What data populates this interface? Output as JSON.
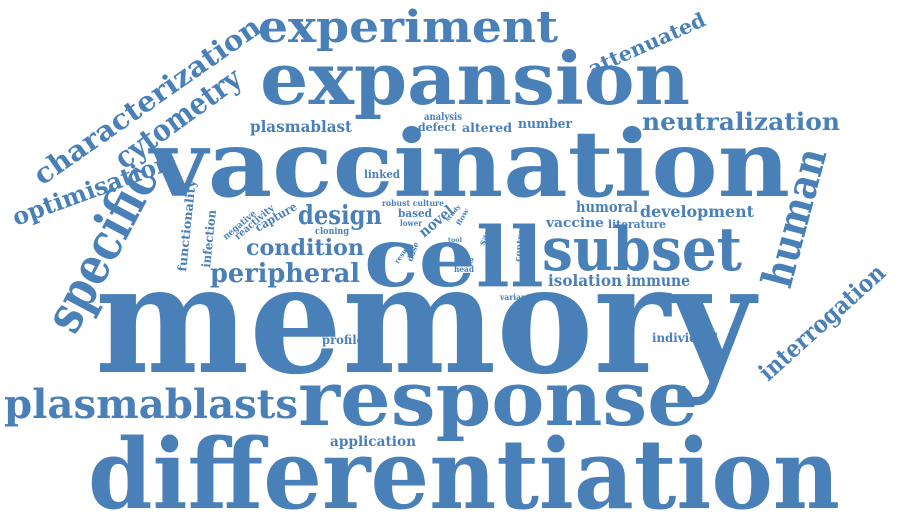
{
  "color": "#4a80b8",
  "words": {
    "memory": "memory",
    "differentiation": "differentiation",
    "vaccination": "vaccination",
    "expansion": "expansion",
    "response": "response",
    "cell": "cell",
    "subset": "subset",
    "experiment": "experiment",
    "specific": "specific",
    "human": "human",
    "plasmablasts": "plasmablasts",
    "characterization": "characterization",
    "cytometry": "cytometry",
    "optimisation": "optimisation",
    "neutralization": "neutralization",
    "interrogation": "interrogation",
    "attenuated": "attenuated",
    "design": "design",
    "condition": "condition",
    "peripheral": "peripheral",
    "plasmablast": "plasmablast",
    "development": "development",
    "humoral": "humoral",
    "isolation": "isolation",
    "immune": "immune",
    "vaccine": "vaccine",
    "literature": "literature",
    "novel": "novel",
    "application": "application",
    "functionality": "functionality",
    "infection": "infection",
    "capture": "capture",
    "reactivity": "reactivity",
    "negative": "negative",
    "profile": "profile",
    "individual": "individual",
    "linked": "linked",
    "analysis": "analysis",
    "defect": "defect",
    "altered": "altered",
    "number": "number",
    "based": "based",
    "robust_culture": "robust culture",
    "cloning": "cloning",
    "lower": "lower",
    "rare": "rare",
    "head": "head",
    "result": "result",
    "dose": "dose",
    "sar": "sar",
    "study": "study",
    "flow": "flow",
    "tool": "tool",
    "control": "control",
    "variant": "variant"
  }
}
